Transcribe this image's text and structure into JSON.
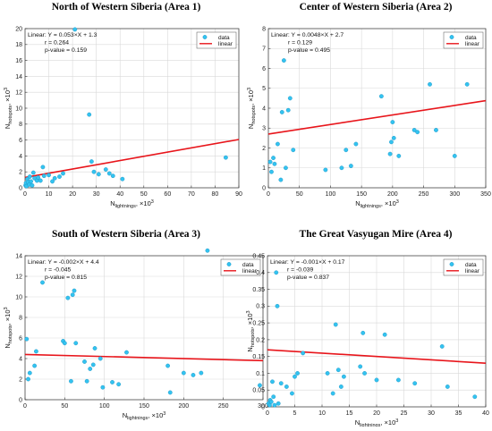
{
  "chart_data": [
    {
      "type": "scatter",
      "title": "North of Western Siberia (Area 1)",
      "xlabel": {
        "main": "N",
        "sub": "lightnings",
        "tail": ", ×10",
        "sup": "3"
      },
      "ylabel": {
        "main": "N",
        "sub": "hotspots",
        "tail": ", ×10",
        "sup": "3"
      },
      "xlim": [
        0,
        90
      ],
      "ylim": [
        0,
        20
      ],
      "xticks": [
        0,
        10,
        20,
        30,
        40,
        50,
        60,
        70,
        80,
        90
      ],
      "yticks": [
        0,
        2,
        4,
        6,
        8,
        10,
        12,
        14,
        16,
        18,
        20
      ],
      "grid": true,
      "legend": {
        "position": "top-right",
        "entries": [
          "data",
          "linear"
        ]
      },
      "annotation": [
        "Linear:  Y = 0.053×X + 1.3",
        "r = 0.264",
        "p-value = 0.159"
      ],
      "fit": {
        "slope": 0.053,
        "intercept": 1.3
      },
      "points": [
        [
          0.2,
          0.3
        ],
        [
          0.4,
          0.6
        ],
        [
          0.6,
          0.2
        ],
        [
          1,
          1.1
        ],
        [
          1.3,
          0.7
        ],
        [
          1.8,
          0.4
        ],
        [
          2,
          1.4
        ],
        [
          2.5,
          0.8
        ],
        [
          3,
          0.3
        ],
        [
          3.5,
          1.9
        ],
        [
          4,
          1.2
        ],
        [
          5,
          0.9
        ],
        [
          5.5,
          1.3
        ],
        [
          6.5,
          0.9
        ],
        [
          7.5,
          2.6
        ],
        [
          8,
          1.5
        ],
        [
          10,
          1.6
        ],
        [
          11.5,
          0.8
        ],
        [
          12.5,
          1.2
        ],
        [
          14.5,
          1.4
        ],
        [
          16,
          1.8
        ],
        [
          21,
          19.9
        ],
        [
          27,
          9.2
        ],
        [
          28,
          3.3
        ],
        [
          29,
          2
        ],
        [
          31,
          1.7
        ],
        [
          34,
          2.3
        ],
        [
          35.5,
          1.8
        ],
        [
          37,
          1.5
        ],
        [
          41,
          1.1
        ],
        [
          84.5,
          3.8
        ]
      ]
    },
    {
      "type": "scatter",
      "title": "Center of Western Siberia (Area 2)",
      "xlabel": {
        "main": "N",
        "sub": "lightnings",
        "tail": ", ×10",
        "sup": "3"
      },
      "ylabel": {
        "main": "N",
        "sub": "hotspots",
        "tail": ", ×10",
        "sup": "3"
      },
      "xlim": [
        0,
        350
      ],
      "ylim": [
        0,
        8
      ],
      "xticks": [
        0,
        50,
        100,
        150,
        200,
        250,
        300,
        350
      ],
      "yticks": [
        0,
        1,
        2,
        3,
        4,
        5,
        6,
        7,
        8
      ],
      "grid": true,
      "legend": {
        "position": "top-right",
        "entries": [
          "data",
          "linear"
        ]
      },
      "annotation": [
        "Linear:  Y = 0.0048×X + 2.7",
        "r = 0.129",
        "p-value = 0.495"
      ],
      "fit": {
        "slope": 0.0048,
        "intercept": 2.7
      },
      "points": [
        [
          3,
          1.3
        ],
        [
          5,
          0.8
        ],
        [
          8,
          1.5
        ],
        [
          10,
          1.2
        ],
        [
          15,
          2.2
        ],
        [
          20,
          0.4
        ],
        [
          22,
          3.8
        ],
        [
          25,
          6.4
        ],
        [
          28,
          1
        ],
        [
          32,
          3.9
        ],
        [
          35,
          4.5
        ],
        [
          40,
          1.9
        ],
        [
          92,
          0.9
        ],
        [
          118,
          1.0
        ],
        [
          125,
          1.9
        ],
        [
          133,
          1.1
        ],
        [
          141,
          2.2
        ],
        [
          182,
          4.6
        ],
        [
          196,
          1.7
        ],
        [
          198,
          2.3
        ],
        [
          200,
          3.3
        ],
        [
          202,
          2.5
        ],
        [
          210,
          1.6
        ],
        [
          235,
          2.9
        ],
        [
          240,
          2.8
        ],
        [
          260,
          5.2
        ],
        [
          270,
          2.9
        ],
        [
          300,
          1.6
        ],
        [
          320,
          5.2
        ]
      ]
    },
    {
      "type": "scatter",
      "title": "South of Western Siberia (Area 3)",
      "xlabel": {
        "main": "N",
        "sub": "lightnings",
        "tail": ", ×10",
        "sup": "3"
      },
      "ylabel": {
        "main": "N",
        "sub": "hotspots",
        "tail": ", ×10",
        "sup": "3"
      },
      "xlim": [
        0,
        300
      ],
      "ylim": [
        0,
        14
      ],
      "xticks": [
        0,
        50,
        100,
        150,
        200,
        250,
        300
      ],
      "yticks": [
        0,
        2,
        4,
        6,
        8,
        10,
        12,
        14
      ],
      "grid": true,
      "legend": {
        "position": "top-right",
        "entries": [
          "data",
          "linear"
        ]
      },
      "annotation": [
        "Linear:  Y = -0.002×X + 4.4",
        "r = -0.045",
        "p-value = 0.815"
      ],
      "fit": {
        "slope": -0.002,
        "intercept": 4.4
      },
      "points": [
        [
          2,
          5.9
        ],
        [
          4,
          2
        ],
        [
          6,
          2.6
        ],
        [
          12,
          3.3
        ],
        [
          14,
          4.7
        ],
        [
          22,
          11.4
        ],
        [
          48,
          5.7
        ],
        [
          50,
          5.5
        ],
        [
          54,
          9.9
        ],
        [
          58,
          1.8
        ],
        [
          60,
          10.2
        ],
        [
          62,
          10.6
        ],
        [
          64,
          5.5
        ],
        [
          75,
          3.7
        ],
        [
          78,
          1.8
        ],
        [
          82,
          3.0
        ],
        [
          86,
          3.4
        ],
        [
          88,
          5.0
        ],
        [
          95,
          4.0
        ],
        [
          98,
          1.2
        ],
        [
          110,
          1.7
        ],
        [
          118,
          1.5
        ],
        [
          128,
          4.6
        ],
        [
          180,
          3.3
        ],
        [
          183,
          0.7
        ],
        [
          200,
          2.6
        ],
        [
          212,
          2.4
        ],
        [
          222,
          2.6
        ],
        [
          230,
          14.5
        ],
        [
          296,
          1.4
        ]
      ]
    },
    {
      "type": "scatter",
      "title": "The Great Vasyugan Mire (Area 4)",
      "xlabel": {
        "main": "N",
        "sub": "lightnings",
        "tail": ", ×10",
        "sup": "3"
      },
      "ylabel": {
        "main": "N",
        "sub": "hotspots",
        "tail": ", ×10",
        "sup": "3"
      },
      "xlim": [
        0,
        40
      ],
      "ylim": [
        0,
        0.45
      ],
      "xticks": [
        0,
        5,
        10,
        15,
        20,
        25,
        30,
        35,
        40
      ],
      "yticks": [
        0,
        0.05,
        0.1,
        0.15,
        0.2,
        0.25,
        0.3,
        0.35,
        0.4,
        0.45
      ],
      "grid": true,
      "legend": {
        "position": "top-right",
        "entries": [
          "data",
          "linear"
        ]
      },
      "annotation": [
        "Linear:  Y = -0.001×X + 0.17",
        "r = -0.039",
        "p-value = 0.837"
      ],
      "fit": {
        "slope": -0.001,
        "intercept": 0.17
      },
      "points": [
        [
          0.2,
          0.01
        ],
        [
          0.4,
          0.005
        ],
        [
          0.5,
          0.02
        ],
        [
          0.7,
          0.015
        ],
        [
          0.9,
          0.075
        ],
        [
          1.1,
          0.03
        ],
        [
          1.3,
          0.005
        ],
        [
          1.6,
          0.4
        ],
        [
          1.8,
          0.3
        ],
        [
          2,
          0.01
        ],
        [
          2.5,
          0.07
        ],
        [
          3.5,
          0.06
        ],
        [
          4.5,
          0.04
        ],
        [
          5,
          0.09
        ],
        [
          5.5,
          0.1
        ],
        [
          6.5,
          0.16
        ],
        [
          11,
          0.1
        ],
        [
          12,
          0.04
        ],
        [
          12.5,
          0.245
        ],
        [
          13,
          0.11
        ],
        [
          13.5,
          0.06
        ],
        [
          14,
          0.09
        ],
        [
          17,
          0.12
        ],
        [
          17.5,
          0.22
        ],
        [
          17.8,
          0.1
        ],
        [
          20,
          0.08
        ],
        [
          21.5,
          0.215
        ],
        [
          24,
          0.08
        ],
        [
          27,
          0.07
        ],
        [
          32,
          0.18
        ],
        [
          33,
          0.06
        ],
        [
          38,
          0.03
        ]
      ]
    }
  ]
}
